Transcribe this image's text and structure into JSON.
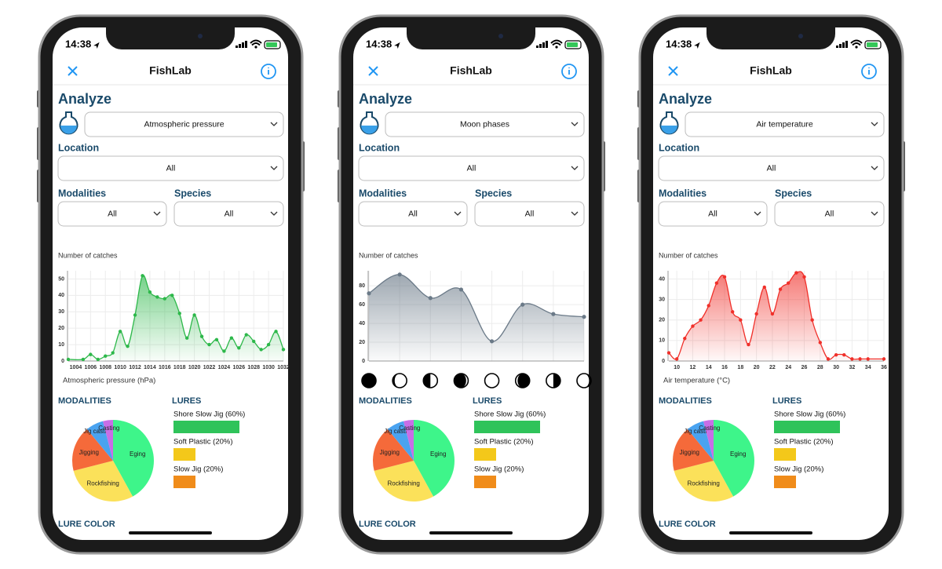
{
  "phones": [
    {
      "status_time": "14:38",
      "app_title": "FishLab",
      "heading": "Analyze",
      "factor": "Atmospheric pressure",
      "location_label": "Location",
      "location_value": "All",
      "modalities_label": "Modalities",
      "modalities_value": "All",
      "species_label": "Species",
      "species_value": "All",
      "chart": {
        "type": "line",
        "y_label": "Number of catches",
        "x_label": "Atmospheric pressure (hPa)",
        "color": "#2db84a",
        "x": [
          1003,
          1005,
          1006,
          1007,
          1008,
          1009,
          1010,
          1011,
          1012,
          1013,
          1014,
          1015,
          1016,
          1017,
          1018,
          1019,
          1020,
          1021,
          1022,
          1023,
          1024,
          1025,
          1026,
          1027,
          1028,
          1029,
          1030,
          1031,
          1032
        ],
        "values": [
          1,
          1,
          4,
          1,
          3,
          5,
          18,
          9,
          28,
          52,
          42,
          39,
          38,
          40,
          29,
          14,
          28,
          15,
          10,
          13,
          6,
          14,
          8,
          16,
          12,
          7,
          10,
          18,
          7
        ],
        "xlim": [
          1003,
          1032
        ],
        "ylim": [
          0,
          55
        ],
        "xticks": [
          1004,
          1006,
          1008,
          1010,
          1012,
          1014,
          1016,
          1018,
          1020,
          1022,
          1024,
          1026,
          1028,
          1030,
          1032
        ],
        "yticks": [
          0,
          10,
          20,
          30,
          40,
          50
        ],
        "grid": true
      },
      "modalities_title": "MODALITIES",
      "pie": {
        "type": "pie",
        "categories": [
          "Eging",
          "Rockfishing",
          "Jigging",
          "Jig casting",
          "Casting"
        ],
        "values": [
          42,
          29,
          18,
          7,
          4
        ],
        "colors": [
          "#3ef58a",
          "#fbe15a",
          "#f56a3a",
          "#4aa3f0",
          "#c86ee6"
        ]
      },
      "lures_title": "LURES",
      "lures": {
        "labels": [
          "Shore Slow Jig (60%)",
          "Soft Plastic (20%)",
          "Slow Jig (20%)"
        ],
        "values": [
          60,
          20,
          20
        ],
        "colors": [
          "#2fc35a",
          "#f3c81a",
          "#f08c1a"
        ]
      },
      "lure_color_title": "LURE COLOR"
    },
    {
      "status_time": "14:38",
      "app_title": "FishLab",
      "heading": "Analyze",
      "factor": "Moon phases",
      "location_label": "Location",
      "location_value": "All",
      "modalities_label": "Modalities",
      "modalities_value": "All",
      "species_label": "Species",
      "species_value": "All",
      "chart": {
        "type": "line",
        "y_label": "Number of catches",
        "color": "#6b7a88",
        "categories": [
          null,
          null,
          null,
          null,
          null,
          null,
          null,
          null
        ],
        "values": [
          72,
          92,
          67,
          76,
          21,
          60,
          50,
          47
        ],
        "ylim": [
          0,
          96
        ],
        "yticks": [
          0,
          20,
          40,
          60,
          80
        ],
        "grid": true
      },
      "modalities_title": "MODALITIES",
      "pie": {
        "type": "pie",
        "categories": [
          "Eging",
          "Rockfishing",
          "Jigging",
          "Jig casting",
          "Casting"
        ],
        "values": [
          42,
          29,
          18,
          7,
          4
        ],
        "colors": [
          "#3ef58a",
          "#fbe15a",
          "#f56a3a",
          "#4aa3f0",
          "#c86ee6"
        ]
      },
      "lures_title": "LURES",
      "lures": {
        "labels": [
          "Shore Slow Jig (60%)",
          "Soft Plastic (20%)",
          "Slow Jig (20%)"
        ],
        "values": [
          60,
          20,
          20
        ],
        "colors": [
          "#2fc35a",
          "#f3c81a",
          "#f08c1a"
        ]
      },
      "lure_color_title": "LURE COLOR"
    },
    {
      "status_time": "14:38",
      "app_title": "FishLab",
      "heading": "Analyze",
      "factor": "Air temperature",
      "location_label": "Location",
      "location_value": "All",
      "modalities_label": "Modalities",
      "modalities_value": "All",
      "species_label": "Species",
      "species_value": "All",
      "chart": {
        "type": "line",
        "y_label": "Number of catches",
        "x_label": "Air temperature (°C)",
        "color": "#f0302a",
        "x": [
          9,
          10,
          11,
          12,
          13,
          14,
          15,
          16,
          17,
          18,
          19,
          20,
          21,
          22,
          23,
          24,
          25,
          26,
          27,
          28,
          29,
          30,
          31,
          32,
          33,
          34,
          36
        ],
        "values": [
          4,
          1,
          11,
          17,
          20,
          27,
          38,
          41,
          24,
          20,
          8,
          23,
          36,
          23,
          35,
          38,
          43,
          41,
          20,
          9,
          1,
          3,
          3,
          1,
          1,
          1,
          1
        ],
        "xlim": [
          9,
          36
        ],
        "ylim": [
          0,
          44
        ],
        "xticks": [
          10,
          12,
          14,
          16,
          18,
          20,
          22,
          24,
          26,
          28,
          30,
          32,
          34,
          36
        ],
        "yticks": [
          0,
          10,
          20,
          30,
          40
        ],
        "grid": true
      },
      "modalities_title": "MODALITIES",
      "pie": {
        "type": "pie",
        "categories": [
          "Eging",
          "Rockfishing",
          "Jigging",
          "Jig casting",
          "Casting"
        ],
        "values": [
          42,
          29,
          18,
          7,
          4
        ],
        "colors": [
          "#3ef58a",
          "#fbe15a",
          "#f56a3a",
          "#4aa3f0",
          "#c86ee6"
        ]
      },
      "lures_title": "LURES",
      "lures": {
        "labels": [
          "Shore Slow Jig (60%)",
          "Soft Plastic (20%)",
          "Slow Jig (20%)"
        ],
        "values": [
          60,
          20,
          20
        ],
        "colors": [
          "#2fc35a",
          "#f3c81a",
          "#f08c1a"
        ]
      },
      "lure_color_title": "LURE COLOR"
    }
  ]
}
